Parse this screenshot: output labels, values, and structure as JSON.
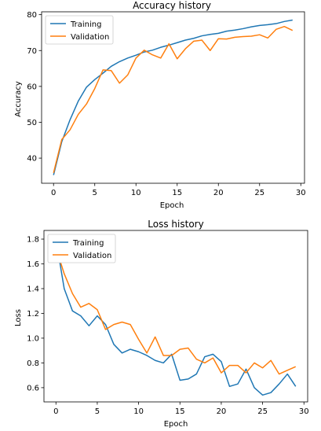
{
  "colors": {
    "training": "#1f77b4",
    "validation": "#ff7f0e"
  },
  "chart_data": [
    {
      "type": "line",
      "title": "Accuracy history",
      "xlabel": "Epoch",
      "ylabel": "Accuracy",
      "xlim": [
        -1.45,
        30.45
      ],
      "ylim": [
        33.0,
        80.8
      ],
      "xticks": [
        0,
        5,
        10,
        15,
        20,
        25,
        30
      ],
      "yticks": [
        40,
        50,
        60,
        70,
        80
      ],
      "legend": "upper left",
      "x": [
        0,
        1,
        2,
        3,
        4,
        5,
        6,
        7,
        8,
        9,
        10,
        11,
        12,
        13,
        14,
        15,
        16,
        17,
        18,
        19,
        20,
        21,
        22,
        23,
        24,
        25,
        26,
        27,
        28,
        29
      ],
      "series": [
        {
          "name": "Training",
          "color": "#1f77b4",
          "values": [
            35.3,
            44.6,
            50.7,
            55.9,
            59.8,
            61.9,
            63.7,
            65.6,
            66.9,
            67.9,
            68.7,
            69.6,
            70.1,
            70.9,
            71.5,
            72.2,
            72.9,
            73.4,
            74.1,
            74.5,
            74.8,
            75.4,
            75.7,
            76.1,
            76.6,
            77.0,
            77.2,
            77.5,
            78.1,
            78.5
          ]
        },
        {
          "name": "Validation",
          "color": "#ff7f0e",
          "values": [
            35.9,
            45.2,
            47.9,
            52.2,
            55.1,
            59.4,
            64.6,
            64.4,
            60.9,
            63.2,
            67.9,
            70.1,
            68.8,
            67.9,
            71.9,
            67.7,
            70.5,
            72.6,
            72.9,
            70.0,
            73.3,
            73.2,
            73.7,
            73.9,
            74.0,
            74.4,
            73.5,
            75.9,
            76.7,
            75.6
          ]
        }
      ]
    },
    {
      "type": "line",
      "title": "Loss history",
      "xlabel": "Epoch",
      "ylabel": "Loss",
      "xlim": [
        -1.45,
        30.45
      ],
      "ylim": [
        0.485,
        1.87
      ],
      "xticks": [
        0,
        5,
        10,
        15,
        20,
        25,
        30
      ],
      "yticks": [
        0.6,
        0.8,
        1.0,
        1.2,
        1.4,
        1.6,
        1.8
      ],
      "legend": "upper left",
      "x": [
        0,
        1,
        2,
        3,
        4,
        5,
        6,
        7,
        8,
        9,
        10,
        11,
        12,
        13,
        14,
        15,
        16,
        17,
        18,
        19,
        20,
        21,
        22,
        23,
        24,
        25,
        26,
        27,
        28,
        29
      ],
      "series": [
        {
          "name": "Training",
          "color": "#1f77b4",
          "values": [
            1.8,
            1.4,
            1.22,
            1.18,
            1.1,
            1.18,
            1.11,
            0.95,
            0.88,
            0.91,
            0.89,
            0.86,
            0.82,
            0.8,
            0.87,
            0.66,
            0.67,
            0.71,
            0.85,
            0.87,
            0.81,
            0.61,
            0.63,
            0.75,
            0.6,
            0.54,
            0.56,
            0.63,
            0.71,
            0.61
          ]
        },
        {
          "name": "Validation",
          "color": "#ff7f0e",
          "values": [
            1.73,
            1.52,
            1.36,
            1.25,
            1.28,
            1.23,
            1.07,
            1.11,
            1.13,
            1.11,
            0.99,
            0.88,
            1.01,
            0.86,
            0.86,
            0.91,
            0.92,
            0.83,
            0.8,
            0.84,
            0.72,
            0.78,
            0.78,
            0.72,
            0.8,
            0.76,
            0.82,
            0.71,
            0.74,
            0.77
          ]
        }
      ]
    }
  ]
}
